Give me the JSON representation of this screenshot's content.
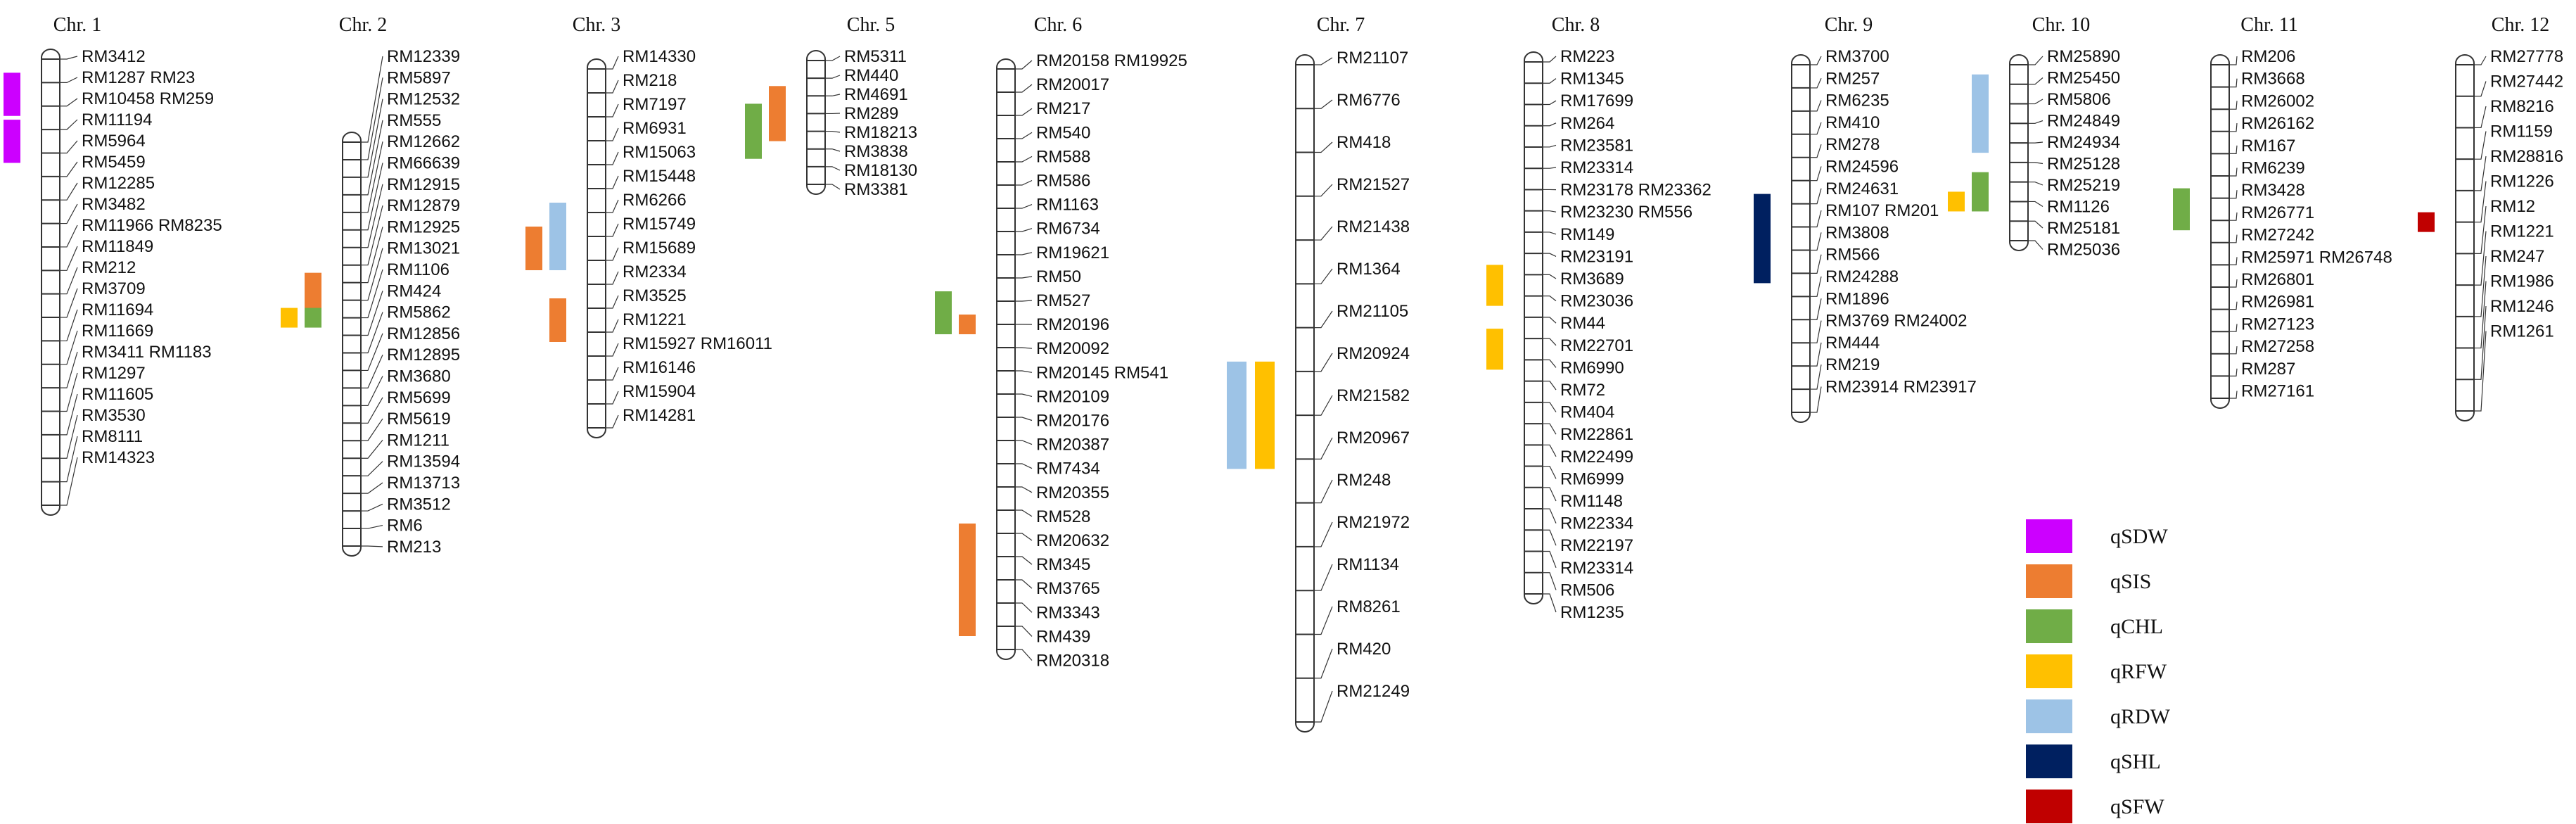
{
  "qtl_colors": {
    "qSDW": "#cc00ff",
    "qSIS": "#ed7d31",
    "qCHL": "#70ad47",
    "qRFW": "#ffc000",
    "qRDW": "#9dc3e6",
    "qSHL": "#002060",
    "qSFW": "#c00000"
  },
  "legend": [
    {
      "trait": "qSDW",
      "label": "qSDW"
    },
    {
      "trait": "qSIS",
      "label": "qSIS"
    },
    {
      "trait": "qCHL",
      "label": "qCHL"
    },
    {
      "trait": "qRFW",
      "label": "qRFW"
    },
    {
      "trait": "qRDW",
      "label": "qRDW"
    },
    {
      "trait": "qSHL",
      "label": "qSHL"
    },
    {
      "trait": "qSFW",
      "label": "qSFW"
    }
  ],
  "chromosomes": [
    {
      "title": "Chr. 1",
      "labels": [
        "RM3412",
        "RM1287 RM23",
        "RM10458 RM259",
        "RM11194",
        "RM5964",
        "RM5459",
        "RM12285",
        "RM3482",
        "RM11966 RM8235",
        "RM11849",
        "RM212",
        "RM3709",
        "RM11694",
        "RM11669",
        "RM3411 RM1183",
        "RM1297",
        "RM11605",
        "RM3530",
        "RM8111",
        "RM14323"
      ],
      "qtls": [
        {
          "trait": "qSDW",
          "col": 0,
          "from": 1,
          "to": 2
        },
        {
          "trait": "qSDW",
          "col": 0,
          "from": 3,
          "to": 4
        }
      ]
    },
    {
      "title": "Chr. 2",
      "labels": [
        "RM12339",
        "RM5897",
        "RM12532",
        "RM555",
        "RM12662",
        "RM66639",
        "RM12915",
        "RM12879",
        "RM12925",
        "RM13021",
        "RM1106",
        "RM424",
        "RM5862",
        "RM12856",
        "RM12895",
        "RM3680",
        "RM5699",
        "RM5619",
        "RM1211",
        "RM13594",
        "RM13713",
        "RM3512",
        "RM6",
        "RM213"
      ],
      "qtls": [
        {
          "trait": "qSIS",
          "col": 0,
          "from": 8,
          "to": 9
        },
        {
          "trait": "qCHL",
          "col": 0,
          "from": 10,
          "to": 10
        },
        {
          "trait": "qRFW",
          "col": 1,
          "from": 10,
          "to": 10
        }
      ]
    },
    {
      "title": "Chr. 3",
      "labels": [
        "RM14330",
        "RM218",
        "RM7197",
        "RM6931",
        "RM15063",
        "RM15448",
        "RM6266",
        "RM15749",
        "RM15689",
        "RM2334",
        "RM3525",
        "RM1221",
        "RM15927 RM16011",
        "RM16146",
        "RM15904",
        "RM14281"
      ],
      "qtls": [
        {
          "trait": "qRDW",
          "col": 0,
          "from": 6,
          "to": 8
        },
        {
          "trait": "qSIS",
          "col": 1,
          "from": 7,
          "to": 8
        },
        {
          "trait": "qSIS",
          "col": 0,
          "from": 10,
          "to": 11
        }
      ]
    },
    {
      "title": "Chr. 5",
      "labels": [
        "RM5311",
        "RM440",
        "RM4691",
        "RM289",
        "RM18213",
        "RM3838",
        "RM18130",
        "RM3381"
      ],
      "qtls": [
        {
          "trait": "qSIS",
          "col": 0,
          "from": 2,
          "to": 4
        },
        {
          "trait": "qCHL",
          "col": 1,
          "from": 3,
          "to": 5
        }
      ]
    },
    {
      "title": "Chr. 6",
      "labels": [
        "RM20158 RM19925",
        "RM20017",
        "RM217",
        "RM540",
        "RM588",
        "RM586",
        "RM1163",
        "RM6734",
        "RM19621",
        "RM50",
        "RM527",
        "RM20196",
        "RM20092",
        "RM20145 RM541",
        "RM20109",
        "RM20176",
        "RM20387",
        "RM7434",
        "RM20355",
        "RM528",
        "RM20632",
        "RM345",
        "RM3765",
        "RM3343",
        "RM439",
        "RM20318"
      ],
      "qtls": [
        {
          "trait": "qSIS",
          "col": 0,
          "from": 11,
          "to": 11
        },
        {
          "trait": "qCHL",
          "col": 1,
          "from": 10,
          "to": 11
        },
        {
          "trait": "qSIS",
          "col": 0,
          "from": 20,
          "to": 24
        }
      ]
    },
    {
      "title": "Chr. 7",
      "labels": [
        "RM21107",
        "RM6776",
        "RM418",
        "RM21527",
        "RM21438",
        "RM1364",
        "RM21105",
        "RM20924",
        "RM21582",
        "RM20967",
        "RM248",
        "RM21972",
        "RM1134",
        "RM8261",
        "RM420",
        "RM21249"
      ],
      "qtls": [
        {
          "trait": "qRFW",
          "col": 0,
          "from": 7,
          "to": 9
        },
        {
          "trait": "qRDW",
          "col": 1,
          "from": 7,
          "to": 9
        }
      ]
    },
    {
      "title": "Chr. 8",
      "labels": [
        "RM223",
        "RM1345",
        "RM17699",
        "RM264",
        "RM23581",
        "RM23314",
        "RM23178 RM23362",
        "RM23230 RM556",
        "RM149",
        "RM23191",
        "RM3689",
        "RM23036",
        "RM44",
        "RM22701",
        "RM6990",
        "RM72",
        "RM404",
        "RM22861",
        "RM22499",
        "RM6999",
        "RM1148",
        "RM22334",
        "RM22197",
        "RM23314",
        "RM506",
        "RM1235"
      ],
      "qtls": [
        {
          "trait": "qRFW",
          "col": 0,
          "from": 10,
          "to": 11
        },
        {
          "trait": "qRFW",
          "col": 0,
          "from": 13,
          "to": 14
        }
      ]
    },
    {
      "title": "Chr. 9",
      "labels": [
        "RM3700",
        "RM257",
        "RM6235",
        "RM410",
        "RM278",
        "RM24596",
        "RM24631",
        "RM107 RM201",
        "RM3808",
        "RM566",
        "RM24288",
        "RM1896",
        "RM3769 RM24002",
        "RM444",
        "RM219",
        "RM23914 RM23917"
      ],
      "qtls": [
        {
          "trait": "qSHL",
          "col": 0,
          "from": 6,
          "to": 9
        }
      ]
    },
    {
      "title": "Chr. 10",
      "labels": [
        "RM25890",
        "RM25450",
        "RM5806",
        "RM24849",
        "RM24934",
        "RM25128",
        "RM25219",
        "RM1126",
        "RM25181",
        "RM25036"
      ],
      "qtls": [
        {
          "trait": "qRDW",
          "col": 0,
          "from": 1,
          "to": 4
        },
        {
          "trait": "qCHL",
          "col": 0,
          "from": 6,
          "to": 7
        },
        {
          "trait": "qRFW",
          "col": 1,
          "from": 7,
          "to": 7
        }
      ]
    },
    {
      "title": "Chr. 11",
      "labels": [
        "RM206",
        "RM3668",
        "RM26002",
        "RM26162",
        "RM167",
        "RM6239",
        "RM3428",
        "RM26771",
        "RM27242",
        "RM25971 RM26748",
        "RM26801",
        "RM26981",
        "RM27123",
        "RM27258",
        "RM287",
        "RM27161"
      ],
      "qtls": [
        {
          "trait": "qCHL",
          "col": 0,
          "from": 6,
          "to": 7
        }
      ]
    },
    {
      "title": "Chr. 12",
      "labels": [
        "RM27778",
        "RM27442",
        "RM8216",
        "RM1159",
        "RM28816",
        "RM1226",
        "RM12",
        "RM1221",
        "RM247",
        "RM1986",
        "RM1246",
        "RM1261"
      ],
      "qtls": [
        {
          "trait": "qSFW",
          "col": 0,
          "from": 5,
          "to": 5
        }
      ]
    }
  ]
}
